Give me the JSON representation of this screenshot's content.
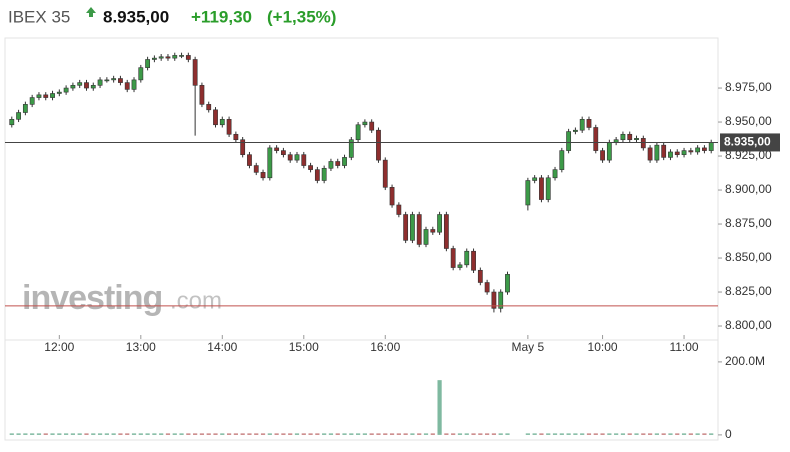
{
  "chart_data": {
    "type": "candlestick",
    "title": "IBEX 35",
    "price": "8.935,00",
    "change": "+119,30",
    "change_pct": "(+1,35%)",
    "watermark": {
      "name": "investing",
      "suffix": ".com"
    },
    "up_color": "#3c9a48",
    "down_color": "#8e2e2e",
    "xlim": [
      -1,
      104
    ],
    "xticks": [
      {
        "value": 7,
        "label": "12:00"
      },
      {
        "value": 19,
        "label": "13:00"
      },
      {
        "value": 31,
        "label": "14:00"
      },
      {
        "value": 43,
        "label": "15:00"
      },
      {
        "value": 55,
        "label": "16:00"
      },
      {
        "value": 76,
        "label": "May 5"
      },
      {
        "value": 87,
        "label": "10:00"
      },
      {
        "value": 99,
        "label": "11:00"
      }
    ],
    "ylim": [
      8793.4,
      9011.8
    ],
    "yticks": [
      {
        "value": 8975,
        "label": "8.975,00"
      },
      {
        "value": 8950,
        "label": "8.950,00"
      },
      {
        "value": 8925,
        "label": "8.925,00"
      },
      {
        "value": 8900,
        "label": "8.900,00"
      },
      {
        "value": 8875,
        "label": "8.875,00"
      },
      {
        "value": 8850,
        "label": "8.850,00"
      },
      {
        "value": 8825,
        "label": "8.825,00"
      },
      {
        "value": 8800,
        "label": "8.800,00"
      }
    ],
    "reference_lines": [
      {
        "value": 8935,
        "color": "#444444",
        "label": "8.935,00"
      },
      {
        "value": 8814.8,
        "color": "#c0504d"
      }
    ],
    "open": [
      8948,
      8952,
      8957,
      8963,
      8968,
      8970,
      8968,
      8971,
      8972,
      8975,
      8977,
      8979,
      8975,
      8977,
      8981,
      8981,
      8982,
      8979,
      8974,
      8981,
      8990,
      8996,
      8997,
      8998,
      8997,
      8999,
      8999,
      8996,
      8977,
      8963,
      8959,
      8948,
      8952,
      8941,
      8937,
      8926,
      8918,
      8913,
      8909,
      8931,
      8929,
      8926,
      8922,
      8926,
      8918,
      8915,
      8907,
      8916,
      8921,
      8918,
      8924,
      8937,
      8948,
      8950,
      8944,
      8922,
      8902,
      8889,
      8882,
      8863,
      8882,
      8860,
      8871,
      8869,
      8882,
      8857,
      8843,
      8845,
      8855,
      8841,
      8832,
      8825,
      8813,
      8825,
      null,
      null,
      8889,
      8907,
      8909,
      8893,
      8909,
      8915,
      8929,
      8943,
      8944,
      8952,
      8946,
      8929,
      8922,
      8935,
      8937,
      8941,
      8937,
      8938,
      8931,
      8922,
      8933,
      8924,
      8928,
      8926,
      8929,
      8928,
      8931,
      8929
    ],
    "high": [
      8954,
      8959,
      8965,
      8970,
      8972,
      8972,
      8973,
      8974,
      8977,
      8979,
      8981,
      8981,
      8979,
      8983,
      8983,
      8984,
      8984,
      8981,
      8983,
      8992,
      8998,
      8999,
      9000,
      9000,
      9001,
      9001,
      9001,
      8998,
      8979,
      8965,
      8961,
      8954,
      8954,
      8943,
      8939,
      8928,
      8920,
      8915,
      8933,
      8933,
      8931,
      8928,
      8928,
      8928,
      8920,
      8917,
      8918,
      8923,
      8923,
      8926,
      8939,
      8950,
      8952,
      8952,
      8946,
      8924,
      8904,
      8891,
      8884,
      8884,
      8884,
      8873,
      8873,
      8884,
      8884,
      8859,
      8847,
      8857,
      8857,
      8843,
      8834,
      8827,
      8827,
      8840,
      null,
      null,
      8909,
      8911,
      8911,
      8911,
      8917,
      8931,
      8945,
      8946,
      8954,
      8954,
      8948,
      8931,
      8937,
      8939,
      8943,
      8943,
      8940,
      8940,
      8933,
      8935,
      8935,
      8930,
      8930,
      8931,
      8931,
      8933,
      8933,
      8937
    ],
    "low": [
      8946,
      8950,
      8955,
      8961,
      8966,
      8966,
      8966,
      8969,
      8970,
      8973,
      8975,
      8973,
      8973,
      8975,
      8979,
      8979,
      8977,
      8972,
      8972,
      8979,
      8988,
      8994,
      8995,
      8995,
      8995,
      8997,
      8994,
      8940,
      8961,
      8957,
      8946,
      8946,
      8939,
      8935,
      8924,
      8916,
      8911,
      8907,
      8907,
      8927,
      8924,
      8920,
      8920,
      8916,
      8913,
      8905,
      8905,
      8914,
      8916,
      8916,
      8922,
      8935,
      8946,
      8942,
      8920,
      8900,
      8887,
      8880,
      8861,
      8861,
      8858,
      8858,
      8867,
      8867,
      8855,
      8841,
      8841,
      8843,
      8839,
      8830,
      8823,
      8810,
      8810,
      8823,
      null,
      null,
      8885,
      8905,
      8891,
      8891,
      8907,
      8913,
      8927,
      8941,
      8942,
      8944,
      8927,
      8920,
      8920,
      8933,
      8935,
      8935,
      8935,
      8929,
      8920,
      8920,
      8922,
      8922,
      8924,
      8924,
      8926,
      8926,
      8927,
      8927
    ],
    "close": [
      8952,
      8957,
      8963,
      8968,
      8970,
      8968,
      8971,
      8972,
      8975,
      8977,
      8979,
      8975,
      8977,
      8981,
      8981,
      8982,
      8979,
      8974,
      8981,
      8990,
      8996,
      8997,
      8998,
      8997,
      8999,
      8999,
      8996,
      8977,
      8963,
      8959,
      8948,
      8952,
      8941,
      8937,
      8926,
      8918,
      8913,
      8909,
      8931,
      8929,
      8926,
      8922,
      8926,
      8918,
      8915,
      8907,
      8916,
      8921,
      8918,
      8924,
      8937,
      8948,
      8950,
      8944,
      8922,
      8902,
      8889,
      8882,
      8863,
      8882,
      8860,
      8871,
      8869,
      8882,
      8857,
      8843,
      8845,
      8855,
      8841,
      8832,
      8825,
      8813,
      8825,
      8838,
      null,
      null,
      8907,
      8909,
      8893,
      8909,
      8915,
      8929,
      8943,
      8944,
      8952,
      8946,
      8929,
      8922,
      8935,
      8937,
      8941,
      8937,
      8938,
      8931,
      8922,
      8933,
      8924,
      8928,
      8926,
      8929,
      8928,
      8931,
      8929,
      8935
    ],
    "volume": [
      2,
      2,
      2,
      2,
      2,
      2,
      2,
      2,
      2,
      2,
      2,
      2,
      2,
      2,
      2,
      2,
      2,
      2,
      2,
      2,
      2,
      2,
      2,
      2,
      2,
      2,
      2,
      2,
      2,
      2,
      2,
      2,
      2,
      2,
      2,
      2,
      2,
      2,
      2,
      2,
      2,
      2,
      2,
      2,
      2,
      2,
      2,
      2,
      2,
      2,
      2,
      2,
      2,
      2,
      2,
      2,
      2,
      2,
      2,
      2,
      2,
      2,
      2,
      150,
      2,
      2,
      2,
      2,
      2,
      2,
      2,
      2,
      2,
      2,
      null,
      null,
      2,
      2,
      2,
      2,
      2,
      2,
      2,
      2,
      2,
      2,
      2,
      2,
      2,
      2,
      2,
      2,
      2,
      2,
      2,
      2,
      2,
      2,
      2,
      2,
      2,
      2,
      2,
      2
    ],
    "volume_ylim": [
      -14,
      260
    ],
    "volume_yticks": [
      {
        "value": 200,
        "label": "200.0M"
      },
      0
    ]
  }
}
